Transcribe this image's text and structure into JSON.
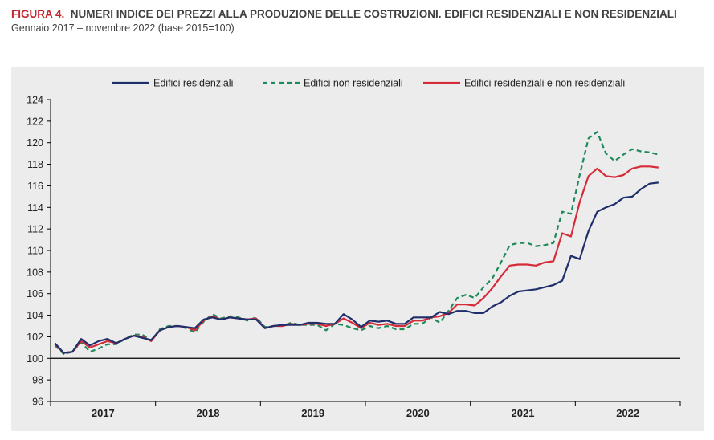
{
  "figure": {
    "label": "FIGURA 4.",
    "title": "NUMERI INDICE DEI PREZZI ALLA PRODUZIONE DELLE COSTRUZIONI. EDIFICI RESIDENZIALI E NON RESIDENZIALI",
    "subtitle": "Gennaio 2017 – novembre 2022 (base 2015=100)"
  },
  "chart_data": {
    "type": "line",
    "ylim": [
      96,
      124
    ],
    "yticks": [
      96,
      98,
      100,
      102,
      104,
      106,
      108,
      110,
      112,
      114,
      116,
      118,
      120,
      122,
      124
    ],
    "year_labels": [
      "2017",
      "2018",
      "2019",
      "2020",
      "2021",
      "2022"
    ],
    "reference_line": 100,
    "legend_position": "top",
    "colors": {
      "residenziali": "#1f2f6b",
      "non_residenziali": "#1e8a5a",
      "totale": "#d62b38"
    },
    "series": [
      {
        "name": "Edifici residenziali",
        "style": "solid",
        "values": [
          101.4,
          100.5,
          100.6,
          101.8,
          101.2,
          101.6,
          101.8,
          101.4,
          101.8,
          102.1,
          101.9,
          101.7,
          102.6,
          102.9,
          103.0,
          102.9,
          102.8,
          103.6,
          103.8,
          103.6,
          103.8,
          103.7,
          103.6,
          103.6,
          102.8,
          103.0,
          103.1,
          103.1,
          103.1,
          103.3,
          103.3,
          103.2,
          103.2,
          104.1,
          103.6,
          102.9,
          103.5,
          103.4,
          103.5,
          103.2,
          103.2,
          103.8,
          103.8,
          103.8,
          104.3,
          104.1,
          104.4,
          104.4,
          104.2,
          104.2,
          104.8,
          105.2,
          105.8,
          106.2,
          106.3,
          106.4,
          106.6,
          106.8,
          107.2,
          109.5,
          109.2,
          111.8,
          113.6,
          114.0,
          114.3,
          114.9,
          115.0,
          115.7,
          116.2,
          116.3
        ]
      },
      {
        "name": "Edifici non residenziali",
        "style": "dashed",
        "values": [
          101.2,
          100.4,
          100.6,
          101.5,
          100.6,
          100.9,
          101.3,
          101.3,
          101.8,
          102.2,
          102.2,
          101.6,
          102.7,
          103.0,
          103.0,
          102.8,
          102.4,
          103.4,
          104.1,
          103.7,
          103.9,
          103.8,
          103.5,
          103.8,
          102.9,
          103.0,
          103.0,
          103.3,
          103.1,
          103.1,
          103.1,
          102.6,
          103.2,
          103.1,
          102.8,
          102.6,
          103.0,
          102.8,
          103.0,
          102.7,
          102.7,
          103.2,
          103.2,
          103.8,
          103.3,
          104.4,
          105.6,
          105.9,
          105.6,
          106.6,
          107.4,
          108.9,
          110.5,
          110.7,
          110.7,
          110.4,
          110.5,
          110.7,
          113.6,
          113.4,
          117.0,
          120.4,
          121.0,
          119.0,
          118.3,
          118.9,
          119.4,
          119.2,
          119.1,
          118.9
        ]
      },
      {
        "name": "Edifici residenziali e non residenziali",
        "style": "solid",
        "values": [
          101.3,
          100.5,
          100.6,
          101.6,
          101.0,
          101.3,
          101.6,
          101.4,
          101.8,
          102.1,
          102.0,
          101.6,
          102.6,
          102.9,
          103.0,
          102.9,
          102.6,
          103.5,
          103.9,
          103.6,
          103.8,
          103.7,
          103.6,
          103.7,
          102.8,
          103.0,
          103.0,
          103.2,
          103.1,
          103.2,
          103.2,
          103.0,
          103.2,
          103.7,
          103.3,
          102.8,
          103.3,
          103.1,
          103.2,
          103.0,
          103.0,
          103.5,
          103.5,
          103.8,
          103.9,
          104.2,
          105.0,
          105.0,
          104.9,
          105.6,
          106.5,
          107.6,
          108.6,
          108.7,
          108.7,
          108.6,
          108.9,
          109.0,
          111.6,
          111.3,
          114.5,
          116.9,
          117.6,
          116.9,
          116.8,
          117.0,
          117.6,
          117.8,
          117.8,
          117.7
        ]
      }
    ]
  }
}
